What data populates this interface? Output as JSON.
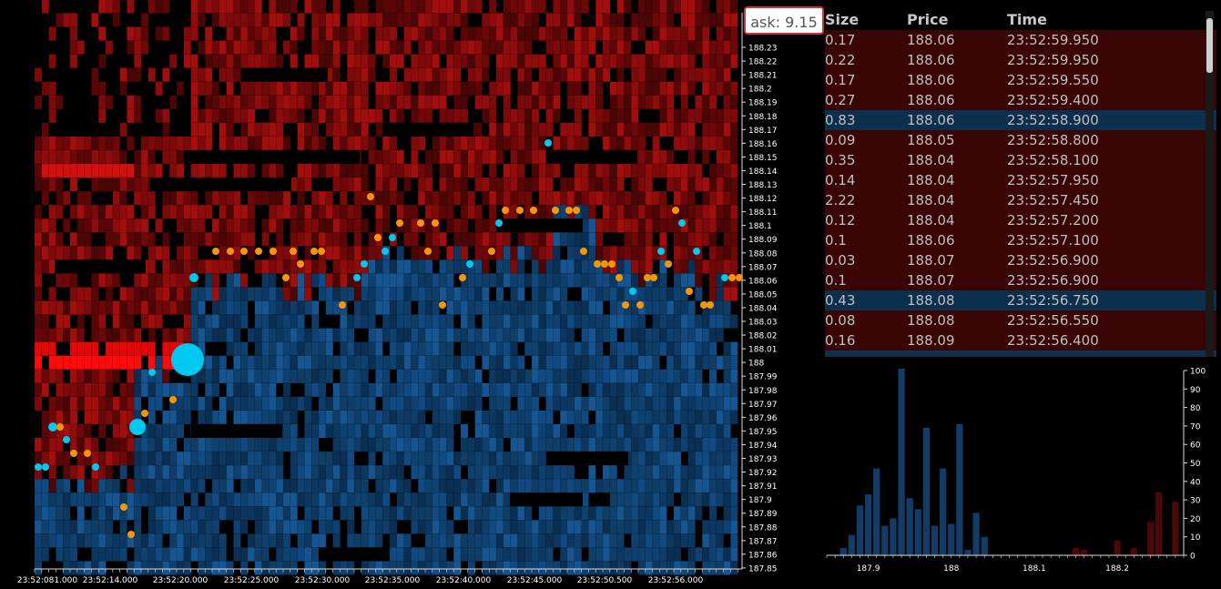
{
  "ask_badge": {
    "label": "ask: 9.15"
  },
  "heatmap": {
    "y_ticks": [
      "188.23",
      "188.22",
      "188.21",
      "188.2",
      "188.19",
      "188.18",
      "188.17",
      "188.16",
      "188.15",
      "188.14",
      "188.13",
      "188.12",
      "188.11",
      "188.1",
      "188.09",
      "188.08",
      "188.07",
      "188.06",
      "188.05",
      "188.04",
      "188.03",
      "188.02",
      "188.01",
      "188",
      "187.99",
      "187.98",
      "187.97",
      "187.96",
      "187.95",
      "187.94",
      "187.93",
      "187.92",
      "187.91",
      "187.9",
      "187.89",
      "187.88",
      "187.87",
      "187.86",
      "187.85"
    ],
    "x_ticks": [
      "23:52:081.000",
      "23:52:14.000",
      "23:52:20.000",
      "23:52:25.000",
      "23:52:30.000",
      "23:52:35.000",
      "23:52:40.000",
      "23:52:45.000",
      "23:52:50.500",
      "23:52:56.000"
    ],
    "colors": {
      "bid": "#0e4a80",
      "ask": "#8a0a0a",
      "bright_ask": "#ff0a0a",
      "buy_dot": "#00c8ee",
      "sell_dot": "#f5960a"
    }
  },
  "trades": {
    "headers": {
      "size": "Size",
      "price": "Price",
      "time": "Time"
    },
    "rows": [
      {
        "size": "0.17",
        "price": "188.06",
        "time": "23:52:59.950",
        "side": "sell"
      },
      {
        "size": "0.22",
        "price": "188.06",
        "time": "23:52:59.950",
        "side": "sell"
      },
      {
        "size": "0.17",
        "price": "188.06",
        "time": "23:52:59.550",
        "side": "sell"
      },
      {
        "size": "0.27",
        "price": "188.06",
        "time": "23:52:59.400",
        "side": "sell"
      },
      {
        "size": "0.83",
        "price": "188.06",
        "time": "23:52:58.900",
        "side": "buy"
      },
      {
        "size": "0.09",
        "price": "188.05",
        "time": "23:52:58.800",
        "side": "sell"
      },
      {
        "size": "0.35",
        "price": "188.04",
        "time": "23:52:58.100",
        "side": "sell"
      },
      {
        "size": "0.14",
        "price": "188.04",
        "time": "23:52:57.950",
        "side": "sell"
      },
      {
        "size": "2.22",
        "price": "188.04",
        "time": "23:52:57.450",
        "side": "sell"
      },
      {
        "size": "0.12",
        "price": "188.04",
        "time": "23:52:57.200",
        "side": "sell"
      },
      {
        "size": "0.1",
        "price": "188.06",
        "time": "23:52:57.100",
        "side": "sell"
      },
      {
        "size": "0.03",
        "price": "188.07",
        "time": "23:52:56.900",
        "side": "sell"
      },
      {
        "size": "0.1",
        "price": "188.07",
        "time": "23:52:56.900",
        "side": "sell"
      },
      {
        "size": "0.43",
        "price": "188.08",
        "time": "23:52:56.750",
        "side": "buy"
      },
      {
        "size": "0.08",
        "price": "188.08",
        "time": "23:52:56.550",
        "side": "sell"
      },
      {
        "size": "0.16",
        "price": "188.09",
        "time": "23:52:56.400",
        "side": "sell"
      },
      {
        "size": "",
        "price": "",
        "time": "",
        "side": "buy"
      }
    ]
  },
  "chart_data": {
    "type": "bar",
    "x_ticks": [
      "187.9",
      "188",
      "188.1",
      "188.2"
    ],
    "y_ticks": [
      "0",
      "10",
      "20",
      "30",
      "40",
      "50",
      "60",
      "70",
      "80",
      "90",
      "100"
    ],
    "ylim": [
      0,
      100
    ],
    "bid_color": "#123c66",
    "ask_color": "#4a0808",
    "bars": [
      {
        "price": 187.87,
        "value": 4,
        "side": "bid"
      },
      {
        "price": 187.88,
        "value": 11,
        "side": "bid"
      },
      {
        "price": 187.89,
        "value": 27,
        "side": "bid"
      },
      {
        "price": 187.9,
        "value": 33,
        "side": "bid"
      },
      {
        "price": 187.91,
        "value": 47,
        "side": "bid"
      },
      {
        "price": 187.92,
        "value": 16,
        "side": "bid"
      },
      {
        "price": 187.93,
        "value": 20,
        "side": "bid"
      },
      {
        "price": 187.94,
        "value": 101,
        "side": "bid"
      },
      {
        "price": 187.95,
        "value": 31,
        "side": "bid"
      },
      {
        "price": 187.96,
        "value": 25,
        "side": "bid"
      },
      {
        "price": 187.97,
        "value": 69,
        "side": "bid"
      },
      {
        "price": 187.98,
        "value": 16,
        "side": "bid"
      },
      {
        "price": 187.99,
        "value": 47,
        "side": "bid"
      },
      {
        "price": 188.0,
        "value": 17,
        "side": "bid"
      },
      {
        "price": 188.01,
        "value": 71,
        "side": "bid"
      },
      {
        "price": 188.02,
        "value": 3,
        "side": "bid"
      },
      {
        "price": 188.03,
        "value": 23,
        "side": "bid"
      },
      {
        "price": 188.04,
        "value": 10,
        "side": "bid"
      },
      {
        "price": 188.15,
        "value": 4,
        "side": "ask"
      },
      {
        "price": 188.16,
        "value": 3,
        "side": "ask"
      },
      {
        "price": 188.2,
        "value": 8,
        "side": "ask"
      },
      {
        "price": 188.22,
        "value": 4,
        "side": "ask"
      },
      {
        "price": 188.24,
        "value": 18,
        "side": "ask"
      },
      {
        "price": 188.25,
        "value": 34,
        "side": "ask"
      },
      {
        "price": 188.27,
        "value": 29,
        "side": "ask"
      }
    ]
  }
}
